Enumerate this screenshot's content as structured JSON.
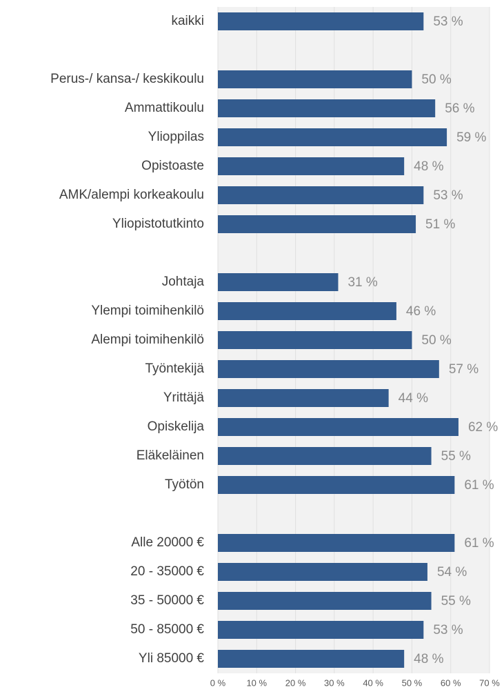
{
  "chart_data": {
    "type": "barh",
    "categories": [
      "kaikki",
      null,
      "Perus-/ kansa-/ keskikoulu",
      "Ammattikoulu",
      "Ylioppilas",
      "Opistoaste",
      "AMK/alempi korkeakoulu",
      "Yliopistotutkinto",
      null,
      "Johtaja",
      "Ylempi toimihenkilö",
      "Alempi toimihenkilö",
      "Työntekijä",
      "Yrittäjä",
      "Opiskelija",
      "Eläkeläinen",
      "Työtön",
      null,
      "Alle 20000 €",
      "20 - 35000 €",
      "35 - 50000 €",
      "50 - 85000 €",
      "Yli 85000 €"
    ],
    "values": [
      53,
      null,
      50,
      56,
      59,
      48,
      53,
      51,
      null,
      31,
      46,
      50,
      57,
      44,
      62,
      55,
      61,
      null,
      61,
      54,
      55,
      53,
      48
    ],
    "value_labels": [
      "53 %",
      null,
      "50 %",
      "56 %",
      "59 %",
      "48 %",
      "53 %",
      "51 %",
      null,
      "31 %",
      "46 %",
      "50 %",
      "57 %",
      "44 %",
      "62 %",
      "55 %",
      "61 %",
      null,
      "61 %",
      "54 %",
      "55 %",
      "53 %",
      "48 %"
    ],
    "color": "#335b8e",
    "xlim": [
      0,
      70
    ],
    "xticks": [
      {
        "value": 0,
        "label": "0 %"
      },
      {
        "value": 10,
        "label": "10 %"
      },
      {
        "value": 20,
        "label": "20 %"
      },
      {
        "value": 30,
        "label": "30 %"
      },
      {
        "value": 40,
        "label": "40 %"
      },
      {
        "value": 50,
        "label": "50 %"
      },
      {
        "value": 60,
        "label": "60 %"
      },
      {
        "value": 70,
        "label": "70 %"
      }
    ],
    "grid": true
  }
}
